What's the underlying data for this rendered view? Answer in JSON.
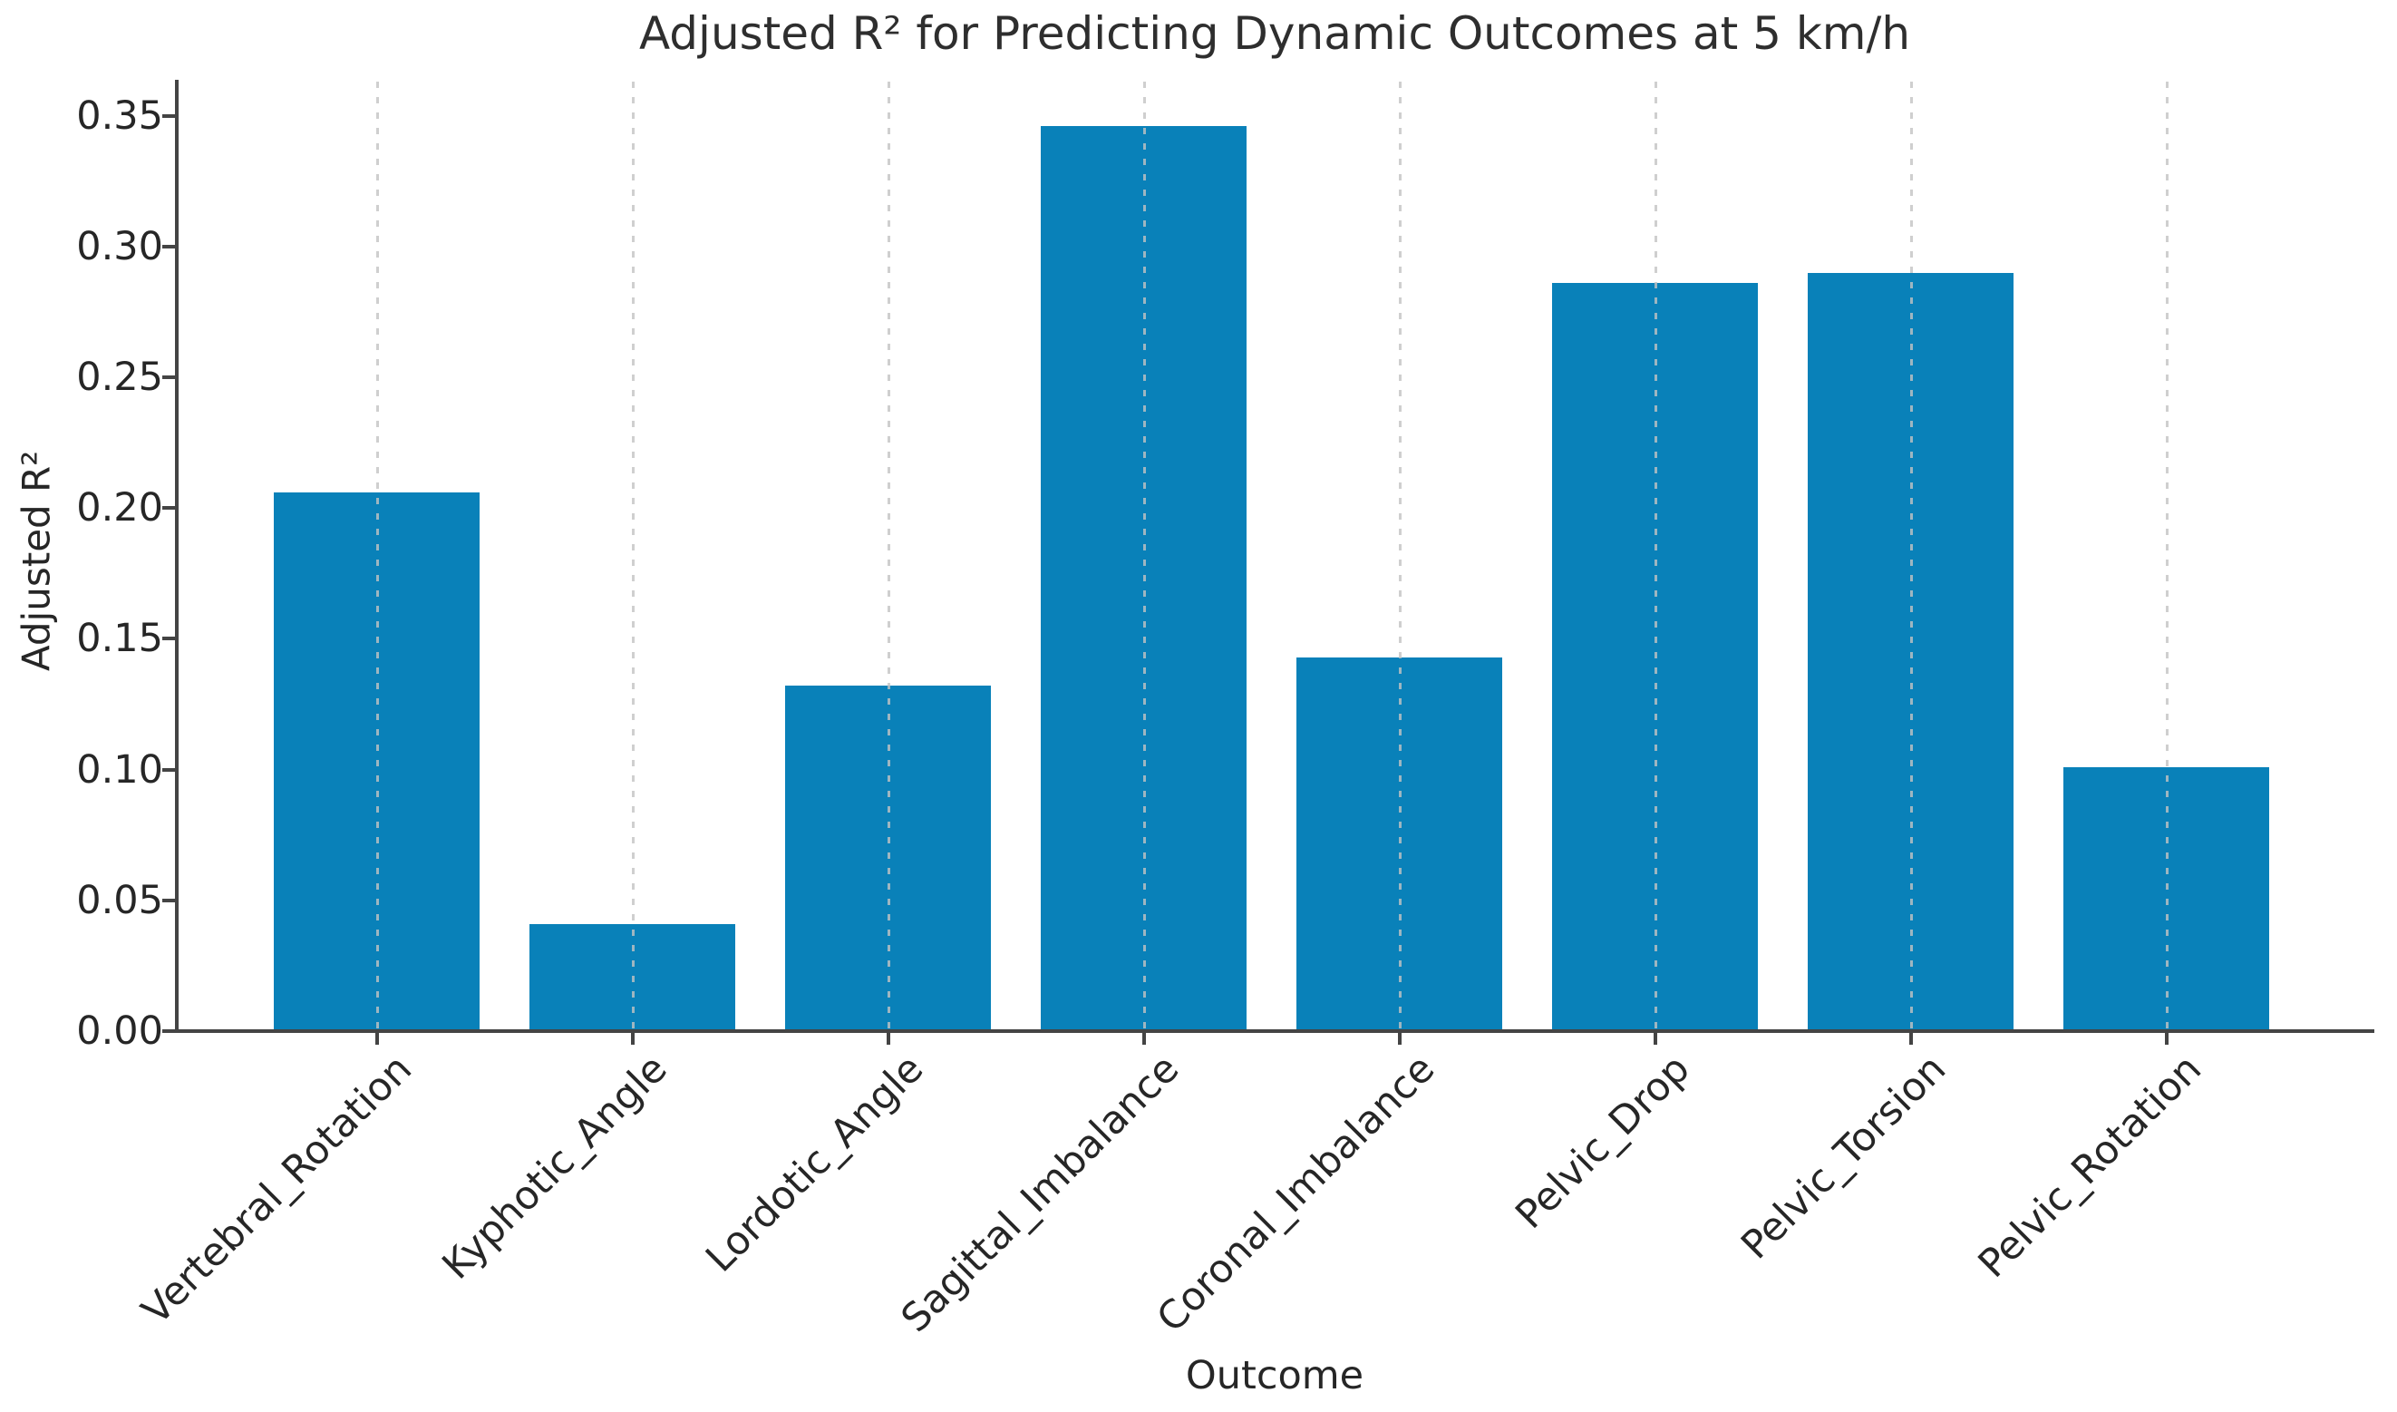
{
  "chart_data": {
    "type": "bar",
    "title": "Adjusted R² for Predicting Dynamic Outcomes at 5 km/h",
    "xlabel": "Outcome",
    "ylabel": "Adjusted R²",
    "categories": [
      "Vertebral_Rotation",
      "Kyphotic_Angle",
      "Lordotic_Angle",
      "Sagittal_Imbalance",
      "Coronal_Imbalance",
      "Pelvic_Drop",
      "Pelvic_Torsion",
      "Pelvic_Rotation"
    ],
    "values": [
      0.206,
      0.041,
      0.132,
      0.346,
      0.143,
      0.286,
      0.29,
      0.101
    ],
    "ylim": [
      0,
      0.363
    ],
    "yticks": [
      0.0,
      0.05,
      0.1,
      0.15,
      0.2,
      0.25,
      0.3,
      0.35
    ],
    "ytick_labels": [
      "0.00",
      "0.05",
      "0.10",
      "0.15",
      "0.20",
      "0.25",
      "0.30",
      "0.35"
    ],
    "grid": {
      "axis": "x",
      "style": "dotted",
      "color": "#c3c3c3"
    },
    "bar_color": "#0981b9",
    "spine_color": "#444444",
    "text_color": "#262626"
  }
}
